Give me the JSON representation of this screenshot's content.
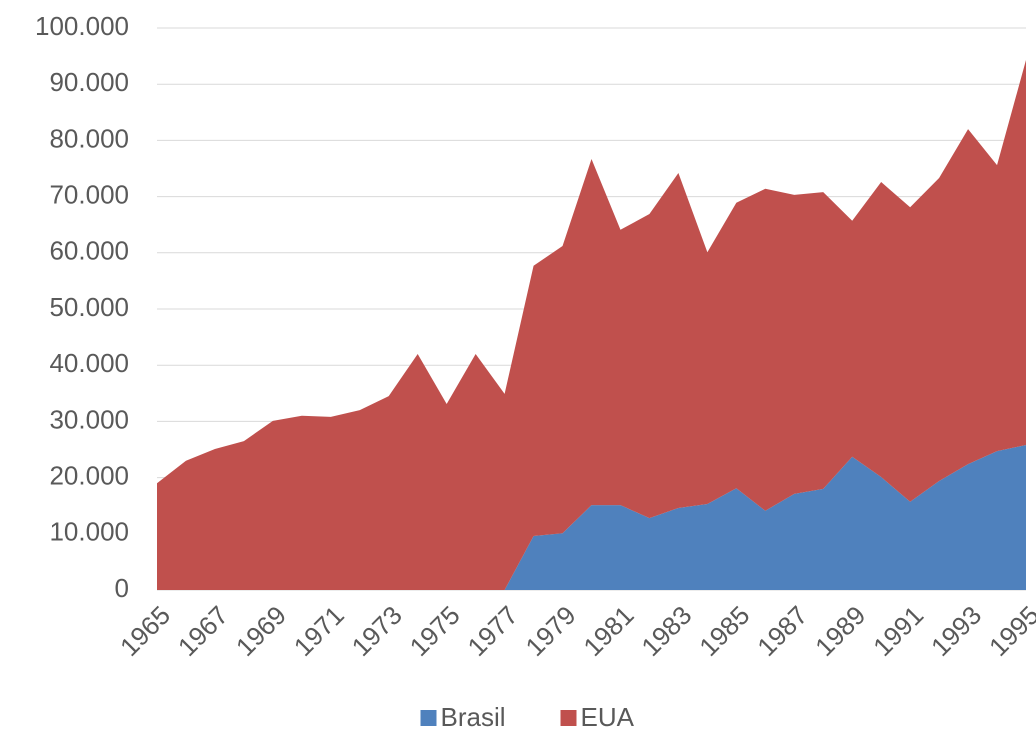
{
  "chart_data": {
    "type": "stacked_area",
    "categories": [
      "1965",
      null,
      "1967",
      null,
      "1969",
      null,
      "1971",
      null,
      "1973",
      null,
      "1975",
      null,
      "1977",
      null,
      "1979",
      null,
      "1981",
      null,
      "1983",
      null,
      "1985",
      null,
      "1987",
      null,
      "1989",
      null,
      "1991",
      null,
      "1993",
      null,
      "1995"
    ],
    "series": [
      {
        "name": "Brasil",
        "color": "#4f81bd",
        "values": [
          0,
          0,
          0,
          0,
          0,
          0,
          0,
          0,
          0,
          0,
          0,
          0,
          0,
          9600,
          10100,
          15100,
          15100,
          12800,
          14600,
          15300,
          18100,
          14100,
          17100,
          18000,
          23700,
          20100,
          15700,
          19400,
          22400,
          24700,
          25800
        ]
      },
      {
        "name": "EUA",
        "color": "#c0504d",
        "values": [
          19000,
          23000,
          25100,
          26500,
          30100,
          31000,
          30800,
          32000,
          34500,
          42000,
          33100,
          42000,
          34900,
          48100,
          51100,
          61600,
          49000,
          54100,
          59600,
          44800,
          50800,
          57300,
          53200,
          52800,
          42000,
          52500,
          52400,
          53900,
          59600,
          50900,
          68500
        ]
      }
    ],
    "ylim": [
      0,
      100000
    ],
    "yticks": [
      0,
      {
        "value": 10000,
        "label": "10.000"
      },
      {
        "value": 20000,
        "label": "20.000"
      },
      {
        "value": 30000,
        "label": "30.000"
      },
      {
        "value": 40000,
        "label": "40.000"
      },
      {
        "value": 50000,
        "label": "50.000"
      },
      {
        "value": 60000,
        "label": "60.000"
      },
      {
        "value": 70000,
        "label": "70.000"
      },
      {
        "value": 80000,
        "label": "80.000"
      },
      {
        "value": 90000,
        "label": "90.000"
      },
      {
        "value": 100000,
        "label": "100.000"
      }
    ],
    "grid": true,
    "legend": "bottom"
  }
}
